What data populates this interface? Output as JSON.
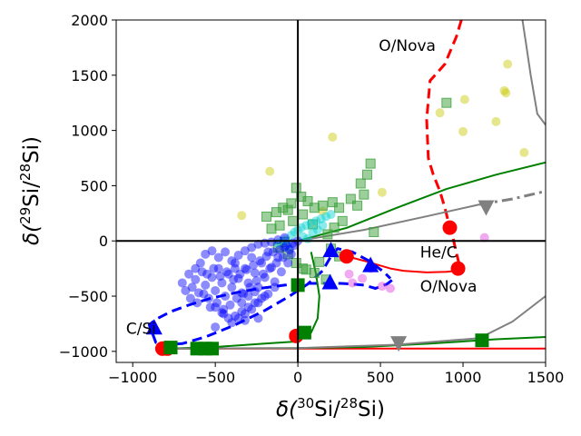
{
  "chart_data": {
    "type": "scatter",
    "title": "",
    "xlabel": "δ(30Si/28Si)",
    "ylabel": "δ(29Si/28Si)",
    "xlabel_parts": {
      "pre": "δ(",
      "sup1": "30",
      "mid": "Si/",
      "sup2": "28",
      "post": "Si)"
    },
    "ylabel_parts": {
      "pre": "δ(",
      "sup1": "29",
      "mid": "Si/",
      "sup2": "28",
      "post": "Si)"
    },
    "xlim": [
      -1100,
      1500
    ],
    "ylim": [
      -1100,
      2000
    ],
    "xticks": [
      -1000,
      -500,
      0,
      500,
      1000,
      1500
    ],
    "yticks": [
      -1000,
      -500,
      0,
      500,
      1000,
      1500,
      2000
    ],
    "xtick_labels": [
      "−1000",
      "−500",
      "0",
      "500",
      "1000",
      "1500"
    ],
    "ytick_labels": [
      "−1000",
      "−500",
      "0",
      "500",
      "1000",
      "1500",
      "2000"
    ],
    "annotations": [
      {
        "text": "O/Nova",
        "x": 490,
        "y": 1720
      },
      {
        "text": "He/C",
        "x": 740,
        "y": -150
      },
      {
        "text": "O/Nova",
        "x": 740,
        "y": -460
      },
      {
        "text": "C/Si",
        "x": -1040,
        "y": -840
      }
    ],
    "colors": {
      "red": "#ff0000",
      "green": "#008000",
      "blue": "#0000ff",
      "gray": "#808080",
      "yellow": "#c8c800",
      "cyan": "#00d0d0",
      "magenta": "#e040e0",
      "lightgreen": "#3ca03c"
    },
    "series": [
      {
        "name": "red-model-curve",
        "kind": "line",
        "color": "#ff0000",
        "style": "dashed",
        "x": [
          990,
          960,
          890,
          800,
          780,
          790,
          820,
          860,
          890,
          910,
          935,
          955,
          975,
          990
        ],
        "y": [
          2000,
          1850,
          1600,
          1450,
          1100,
          750,
          600,
          450,
          300,
          180,
          60,
          -80,
          -200,
          -250
        ]
      },
      {
        "name": "red-model-curve-lower",
        "kind": "line",
        "color": "#ff0000",
        "style": "solid",
        "x": [
          990,
          960,
          900,
          780,
          640,
          560,
          470,
          400,
          300
        ],
        "y": [
          -250,
          -270,
          -280,
          -285,
          -270,
          -250,
          -210,
          -180,
          -140
        ]
      },
      {
        "name": "red-markers",
        "kind": "scatter",
        "marker": "circle",
        "color": "#ff0000",
        "x": [
          920,
          970,
          295,
          -10,
          -790,
          -820
        ],
        "y": [
          120,
          -250,
          -140,
          -860,
          -975,
          -975
        ]
      },
      {
        "name": "red-baseline",
        "kind": "line",
        "color": "#ff0000",
        "style": "solid",
        "x": [
          -800,
          1500
        ],
        "y": [
          -975,
          -975
        ]
      },
      {
        "name": "blue-model-curve",
        "kind": "line",
        "color": "#0000ff",
        "style": "dashed",
        "x": [
          570,
          540,
          470,
          400,
          330,
          260,
          180,
          100,
          30,
          -80,
          -230,
          -380,
          -530,
          -660,
          -770,
          -860,
          -900,
          -860,
          -800,
          -700,
          -560,
          -380,
          -200,
          -50,
          60,
          150,
          200,
          240,
          330,
          430,
          520,
          560
        ],
        "y": [
          -355,
          -390,
          -430,
          -400,
          -390,
          -385,
          -385,
          -385,
          -385,
          -400,
          -430,
          -470,
          -520,
          -580,
          -640,
          -710,
          -760,
          -920,
          -940,
          -930,
          -870,
          -760,
          -630,
          -500,
          -390,
          -270,
          -140,
          -70,
          -100,
          -180,
          -280,
          -340
        ]
      },
      {
        "name": "blue-triangles",
        "kind": "scatter",
        "marker": "triangle-up",
        "color": "#0000ff",
        "x": [
          -870,
          200,
          440,
          195
        ],
        "y": [
          -790,
          -90,
          -225,
          -380
        ]
      },
      {
        "name": "green-squares",
        "kind": "scatter",
        "marker": "square",
        "color": "#008000",
        "x": [
          -770,
          -610,
          -560,
          -520,
          0,
          40,
          1115
        ],
        "y": [
          -965,
          -975,
          -975,
          -975,
          -400,
          -830,
          -900
        ]
      },
      {
        "name": "green-curve-1",
        "kind": "line",
        "color": "#008000",
        "style": "solid",
        "x": [
          0,
          300,
          600,
          900,
          1200,
          1500
        ],
        "y": [
          0,
          120,
          300,
          470,
          600,
          710
        ]
      },
      {
        "name": "green-curve-2",
        "kind": "line",
        "color": "#008000",
        "style": "solid",
        "x": [
          -780,
          -500,
          -200,
          0,
          80,
          120,
          130,
          110,
          80
        ],
        "y": [
          -975,
          -960,
          -930,
          -910,
          -830,
          -700,
          -500,
          -300,
          -100
        ]
      },
      {
        "name": "green-curve-3",
        "kind": "line",
        "color": "#008000",
        "style": "solid",
        "x": [
          -780,
          0,
          400,
          800,
          1200,
          1500
        ],
        "y": [
          -975,
          -970,
          -960,
          -930,
          -890,
          -870
        ]
      },
      {
        "name": "gray-curve-1",
        "kind": "line",
        "color": "#808080",
        "style": "solid",
        "x": [
          1360,
          1380,
          1410,
          1450,
          1500
        ],
        "y": [
          2000,
          1800,
          1500,
          1150,
          1050
        ]
      },
      {
        "name": "gray-curve-2",
        "kind": "line",
        "color": "#808080",
        "style": "solid",
        "x": [
          0,
          400,
          800,
          1100
        ],
        "y": [
          0,
          100,
          230,
          330
        ]
      },
      {
        "name": "gray-curve-2-dashed",
        "kind": "line",
        "color": "#808080",
        "style": "dashdot",
        "x": [
          1100,
          1300,
          1500
        ],
        "y": [
          330,
          380,
          450
        ]
      },
      {
        "name": "gray-curve-3",
        "kind": "line",
        "color": "#808080",
        "style": "solid",
        "x": [
          -780,
          0,
          600,
          1100,
          1300,
          1500
        ],
        "y": [
          -975,
          -970,
          -940,
          -880,
          -730,
          -500
        ]
      },
      {
        "name": "gray-triangles",
        "kind": "scatter",
        "marker": "triangle-down",
        "color": "#808080",
        "x": [
          1140,
          610
        ],
        "y": [
          310,
          -920
        ]
      },
      {
        "name": "yellow-grains",
        "kind": "scatter",
        "marker": "circle",
        "color": "#c8c800",
        "x": [
          1270,
          1250,
          1260,
          1200,
          1010,
          1000,
          1370,
          860,
          510,
          210,
          -170,
          -340,
          150
        ],
        "y": [
          1600,
          1360,
          1340,
          1080,
          1280,
          990,
          800,
          1160,
          440,
          940,
          630,
          230,
          270
        ]
      },
      {
        "name": "magenta-grains",
        "kind": "scatter",
        "marker": "circle",
        "color": "#e040e0",
        "x": [
          310,
          330,
          390,
          440,
          510,
          560,
          1130
        ],
        "y": [
          -300,
          -380,
          -340,
          -250,
          -410,
          -430,
          30
        ]
      },
      {
        "name": "green-square-grains",
        "kind": "scatter",
        "marker": "square",
        "color": "#3ca03c",
        "x": [
          -110,
          -160,
          -190,
          -130,
          -90,
          -60,
          -40,
          -10,
          20,
          60,
          100,
          150,
          210,
          250,
          320,
          380,
          420,
          440,
          400,
          360,
          270,
          220,
          180,
          90,
          30,
          -30,
          -80,
          -120,
          -60,
          -10,
          50,
          130,
          200,
          250,
          170,
          100,
          30,
          900,
          460
        ],
        "y": [
          140,
          110,
          220,
          260,
          300,
          280,
          340,
          480,
          400,
          360,
          300,
          320,
          350,
          300,
          380,
          520,
          600,
          700,
          420,
          320,
          180,
          120,
          60,
          150,
          240,
          180,
          -10,
          -60,
          -120,
          -200,
          -260,
          -190,
          -70,
          -140,
          -350,
          -290,
          -250,
          1250,
          80
        ]
      },
      {
        "name": "cyan-grains",
        "kind": "scatter",
        "marker": "circle",
        "color": "#00d0d0",
        "x": [
          -120,
          -80,
          -40,
          -20,
          0,
          20,
          50,
          80,
          110,
          140,
          170,
          200,
          -60,
          30,
          90,
          120,
          150,
          60
        ],
        "y": [
          -20,
          10,
          50,
          80,
          100,
          120,
          140,
          160,
          180,
          200,
          220,
          240,
          -50,
          40,
          80,
          100,
          140,
          20
        ]
      },
      {
        "name": "blue-grains",
        "kind": "scatter",
        "marker": "circle",
        "color": "#0000ff",
        "x": [
          -700,
          -660,
          -640,
          -620,
          -600,
          -580,
          -560,
          -540,
          -520,
          -500,
          -480,
          -460,
          -440,
          -420,
          -400,
          -380,
          -360,
          -340,
          -320,
          -300,
          -280,
          -260,
          -240,
          -220,
          -200,
          -180,
          -160,
          -140,
          -120,
          -100,
          -80,
          -60,
          -40,
          -20,
          0,
          -680,
          -650,
          -610,
          -570,
          -530,
          -490,
          -450,
          -410,
          -370,
          -330,
          -290,
          -250,
          -210,
          -170,
          -130,
          -90,
          -50,
          -620,
          -590,
          -550,
          -510,
          -470,
          -430,
          -390,
          -350,
          -310,
          -270,
          -230,
          -190,
          -150,
          -110,
          -70,
          -30,
          -560,
          -520,
          -480,
          -440,
          -400,
          -360,
          -320,
          -280,
          -240,
          -200,
          -160,
          -120,
          -80,
          -500,
          -460,
          -420,
          -380,
          -340,
          -300,
          -260,
          -220,
          -180,
          -140,
          -400,
          -360,
          -320,
          -280,
          -240,
          -200,
          -340,
          -300,
          -260,
          -240,
          -500,
          -450,
          -320,
          -380
        ],
        "y": [
          -380,
          -300,
          -420,
          -350,
          -470,
          -280,
          -400,
          -520,
          -330,
          -450,
          -250,
          -380,
          -500,
          -300,
          -420,
          -200,
          -340,
          -470,
          -250,
          -380,
          -150,
          -290,
          -420,
          -200,
          -330,
          -100,
          -240,
          -370,
          -150,
          -280,
          -60,
          -200,
          -120,
          -40,
          0,
          -450,
          -520,
          -560,
          -480,
          -600,
          -560,
          -620,
          -580,
          -520,
          -480,
          -420,
          -360,
          -300,
          -250,
          -200,
          -150,
          -80,
          -250,
          -200,
          -300,
          -250,
          -320,
          -280,
          -350,
          -300,
          -260,
          -220,
          -180,
          -140,
          -100,
          -80,
          -40,
          -20,
          -120,
          -90,
          -150,
          -100,
          -180,
          -130,
          -90,
          -60,
          -30,
          -20,
          -10,
          10,
          30,
          -600,
          -650,
          -700,
          -680,
          -640,
          -600,
          -560,
          -520,
          -480,
          -420,
          -740,
          -700,
          -660,
          -620,
          -560,
          -500,
          -560,
          -500,
          -460,
          -700,
          -780,
          -660,
          -720,
          -250
        ]
      }
    ]
  }
}
